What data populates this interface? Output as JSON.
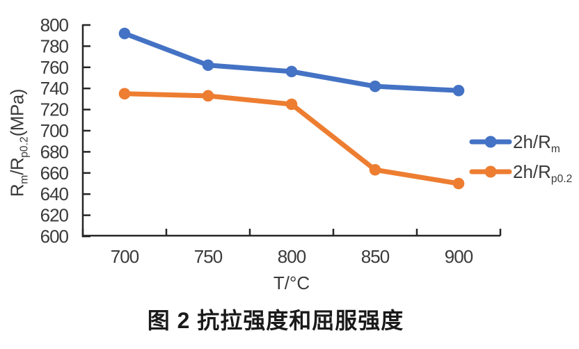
{
  "chart_data": {
    "type": "line",
    "title": "图 2 抗拉强度和屈服强度",
    "xlabel": "T/°C",
    "ylabel": "Rm/Rp0.2(MPa)",
    "categories": [
      700,
      750,
      800,
      850,
      900
    ],
    "series": [
      {
        "name": "2h/Rm",
        "values": [
          792,
          762,
          756,
          742,
          738
        ],
        "color": "#4472C4"
      },
      {
        "name": "2h/Rp0.2",
        "values": [
          735,
          733,
          725,
          663,
          650
        ],
        "color": "#ED7D31"
      }
    ],
    "ylim": [
      600,
      800
    ],
    "ytick_step": 20,
    "grid": false,
    "legend_position": "right-middle",
    "marker": "circle",
    "axis_color": "#262626",
    "text_color": "#3a3a3a"
  },
  "labels": {
    "ylabel_parts": {
      "r1": "R",
      "sub1": "m",
      "r2": "/R",
      "sub2": "p0.2",
      "unit": "(MPa)"
    },
    "legend": [
      {
        "main": "2h/R",
        "sub": "m"
      },
      {
        "main": "2h/R",
        "sub": "p0.2"
      }
    ]
  }
}
